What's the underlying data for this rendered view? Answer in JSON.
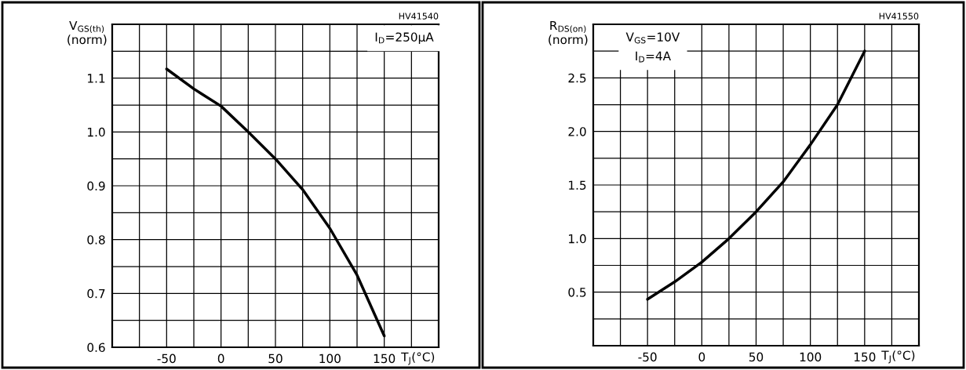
{
  "chart_data": [
    {
      "type": "line",
      "ylabel": "V$_{GS(th)}$\n(norm)",
      "xlabel": "T$_{J}$(°C)",
      "annotations": [
        "HV41540",
        "I$_{D}$=250μA"
      ],
      "x": [
        -50,
        -25,
        0,
        25,
        50,
        75,
        100,
        125,
        150
      ],
      "series": [
        {
          "color": "#000000",
          "values": [
            1.117,
            1.08,
            1.048,
            1.0,
            0.95,
            0.893,
            0.821,
            0.734,
            0.621
          ]
        }
      ],
      "xlim": [
        -100,
        200
      ],
      "xticks": [
        {
          "value": -75,
          "label": null
        },
        -50,
        {
          "value": -25,
          "label": null
        },
        0,
        {
          "value": 25,
          "label": null
        },
        50,
        {
          "value": 75,
          "label": null
        },
        100,
        {
          "value": 125,
          "label": null
        },
        150,
        {
          "value": 175,
          "label": null
        }
      ],
      "ylim": [
        0.6,
        1.2
      ],
      "yticks": [
        {
          "value": 0.6,
          "label": "0.6"
        },
        {
          "value": 0.65,
          "label": null
        },
        {
          "value": 0.7,
          "label": "0.7"
        },
        {
          "value": 0.75,
          "label": null
        },
        {
          "value": 0.8,
          "label": "0.8"
        },
        {
          "value": 0.85,
          "label": null
        },
        {
          "value": 0.9,
          "label": "0.9"
        },
        {
          "value": 0.95,
          "label": null
        },
        {
          "value": 1.0,
          "label": "1.0"
        },
        {
          "value": 1.05,
          "label": null
        },
        {
          "value": 1.1,
          "label": "1.1"
        },
        {
          "value": 1.15,
          "label": null
        }
      ],
      "grid": true
    },
    {
      "type": "line",
      "ylabel": "R$_{DS(on)}$\n(norm)",
      "xlabel": "T$_{J}$(°C)",
      "annotations": [
        "HV41550",
        "V$_{GS}$=10V\nI$_{D}$=4A"
      ],
      "x": [
        -50,
        -25,
        0,
        25,
        50,
        75,
        100,
        125,
        150
      ],
      "series": [
        {
          "color": "#000000",
          "values": [
            0.433,
            0.596,
            0.78,
            1.0,
            1.25,
            1.53,
            1.876,
            2.25,
            2.75
          ]
        }
      ],
      "xlim": [
        -100,
        200
      ],
      "xticks": [
        {
          "value": -75,
          "label": null
        },
        -50,
        {
          "value": -25,
          "label": null
        },
        0,
        {
          "value": 25,
          "label": null
        },
        50,
        {
          "value": 75,
          "label": null
        },
        100,
        {
          "value": 125,
          "label": null
        },
        150,
        {
          "value": 175,
          "label": null
        }
      ],
      "ylim": [
        0,
        3
      ],
      "yticks": [
        {
          "value": 0.25,
          "label": null
        },
        {
          "value": 0.5,
          "label": "0.5"
        },
        {
          "value": 0.75,
          "label": null
        },
        {
          "value": 1.0,
          "label": "1.0"
        },
        {
          "value": 1.25,
          "label": null
        },
        {
          "value": 1.5,
          "label": "1.5"
        },
        {
          "value": 1.75,
          "label": null
        },
        {
          "value": 2.0,
          "label": "2.0"
        },
        {
          "value": 2.25,
          "label": null
        },
        {
          "value": 2.5,
          "label": "2.5"
        },
        {
          "value": 2.75,
          "label": null
        }
      ],
      "grid": true
    }
  ]
}
